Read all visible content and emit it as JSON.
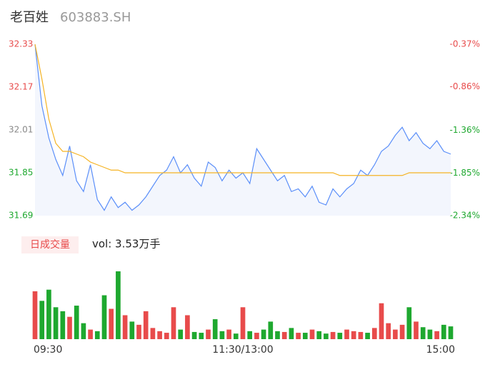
{
  "chart_data": {
    "type": "intraday",
    "title": "老百姓",
    "subtitle": "603883.SH",
    "x": [
      0,
      4,
      8,
      12,
      16,
      20,
      24,
      28,
      32,
      36,
      40,
      44,
      48,
      52,
      56,
      60,
      64,
      68,
      72,
      76,
      80,
      84,
      88,
      92,
      96,
      100,
      104,
      108,
      112,
      116,
      120,
      124,
      128,
      132,
      136,
      140,
      144,
      148,
      152,
      156,
      160,
      164,
      168,
      172,
      176,
      180,
      184,
      188,
      192,
      196,
      200,
      204,
      208,
      212,
      216,
      220,
      224,
      228,
      232,
      236,
      240
    ],
    "xlim": [
      0,
      240
    ],
    "xticks": [
      {
        "value": 0,
        "label": "09:30"
      },
      {
        "value": 120,
        "label": "11:30/13:00"
      },
      {
        "value": 240,
        "label": "15:00"
      }
    ],
    "ylim": [
      31.69,
      32.33
    ],
    "yticks": [
      31.69,
      31.85,
      32.01,
      32.17,
      32.33
    ],
    "y2lim": [
      -2.34,
      -0.37
    ],
    "y2ticks": [
      {
        "value": -2.34,
        "label": "-2.34%"
      },
      {
        "value": -1.85,
        "label": "-1.85%"
      },
      {
        "value": -1.36,
        "label": "-1.36%"
      },
      {
        "value": -0.86,
        "label": "-0.86%"
      },
      {
        "value": -0.37,
        "label": "-0.37%"
      }
    ],
    "series": [
      {
        "name": "price",
        "color": "#5b8ff9",
        "values": [
          32.33,
          32.1,
          31.98,
          31.9,
          31.84,
          31.95,
          31.82,
          31.78,
          31.88,
          31.75,
          31.71,
          31.76,
          31.72,
          31.74,
          31.71,
          31.73,
          31.76,
          31.8,
          31.84,
          31.86,
          31.91,
          31.85,
          31.88,
          31.83,
          31.8,
          31.89,
          31.87,
          31.82,
          31.86,
          31.83,
          31.85,
          31.81,
          31.94,
          31.9,
          31.86,
          31.82,
          31.84,
          31.78,
          31.79,
          31.76,
          31.8,
          31.74,
          31.73,
          31.79,
          31.76,
          31.79,
          31.81,
          31.86,
          31.84,
          31.88,
          31.93,
          31.95,
          31.99,
          32.02,
          31.97,
          32.0,
          31.96,
          31.94,
          31.97,
          31.93,
          31.92
        ]
      },
      {
        "name": "average",
        "color": "#f5b323",
        "values": [
          32.33,
          32.2,
          32.05,
          31.96,
          31.93,
          31.93,
          31.92,
          31.91,
          31.89,
          31.88,
          31.87,
          31.86,
          31.86,
          31.85,
          31.85,
          31.85,
          31.85,
          31.85,
          31.85,
          31.85,
          31.85,
          31.85,
          31.85,
          31.85,
          31.85,
          31.85,
          31.85,
          31.85,
          31.85,
          31.85,
          31.85,
          31.85,
          31.85,
          31.85,
          31.85,
          31.85,
          31.85,
          31.85,
          31.85,
          31.85,
          31.85,
          31.85,
          31.85,
          31.85,
          31.84,
          31.84,
          31.84,
          31.84,
          31.84,
          31.84,
          31.84,
          31.84,
          31.84,
          31.84,
          31.85,
          31.85,
          31.85,
          31.85,
          31.85,
          31.85,
          31.85
        ]
      }
    ],
    "volume_label": "日成交量",
    "volume_text": "vol: 3.53万手",
    "volume": [
      60,
      48,
      62,
      40,
      35,
      28,
      42,
      20,
      12,
      10,
      55,
      38,
      85,
      30,
      22,
      18,
      35,
      14,
      10,
      8,
      40,
      12,
      30,
      9,
      8,
      12,
      25,
      10,
      12,
      7,
      40,
      10,
      8,
      12,
      22,
      10,
      9,
      14,
      8,
      8,
      12,
      10,
      7,
      9,
      8,
      12,
      10,
      9,
      8,
      14,
      45,
      20,
      12,
      18,
      40,
      22,
      15,
      12,
      10,
      18,
      16
    ],
    "up_color": "#e84b4b",
    "down_color": "#1ea82f"
  }
}
